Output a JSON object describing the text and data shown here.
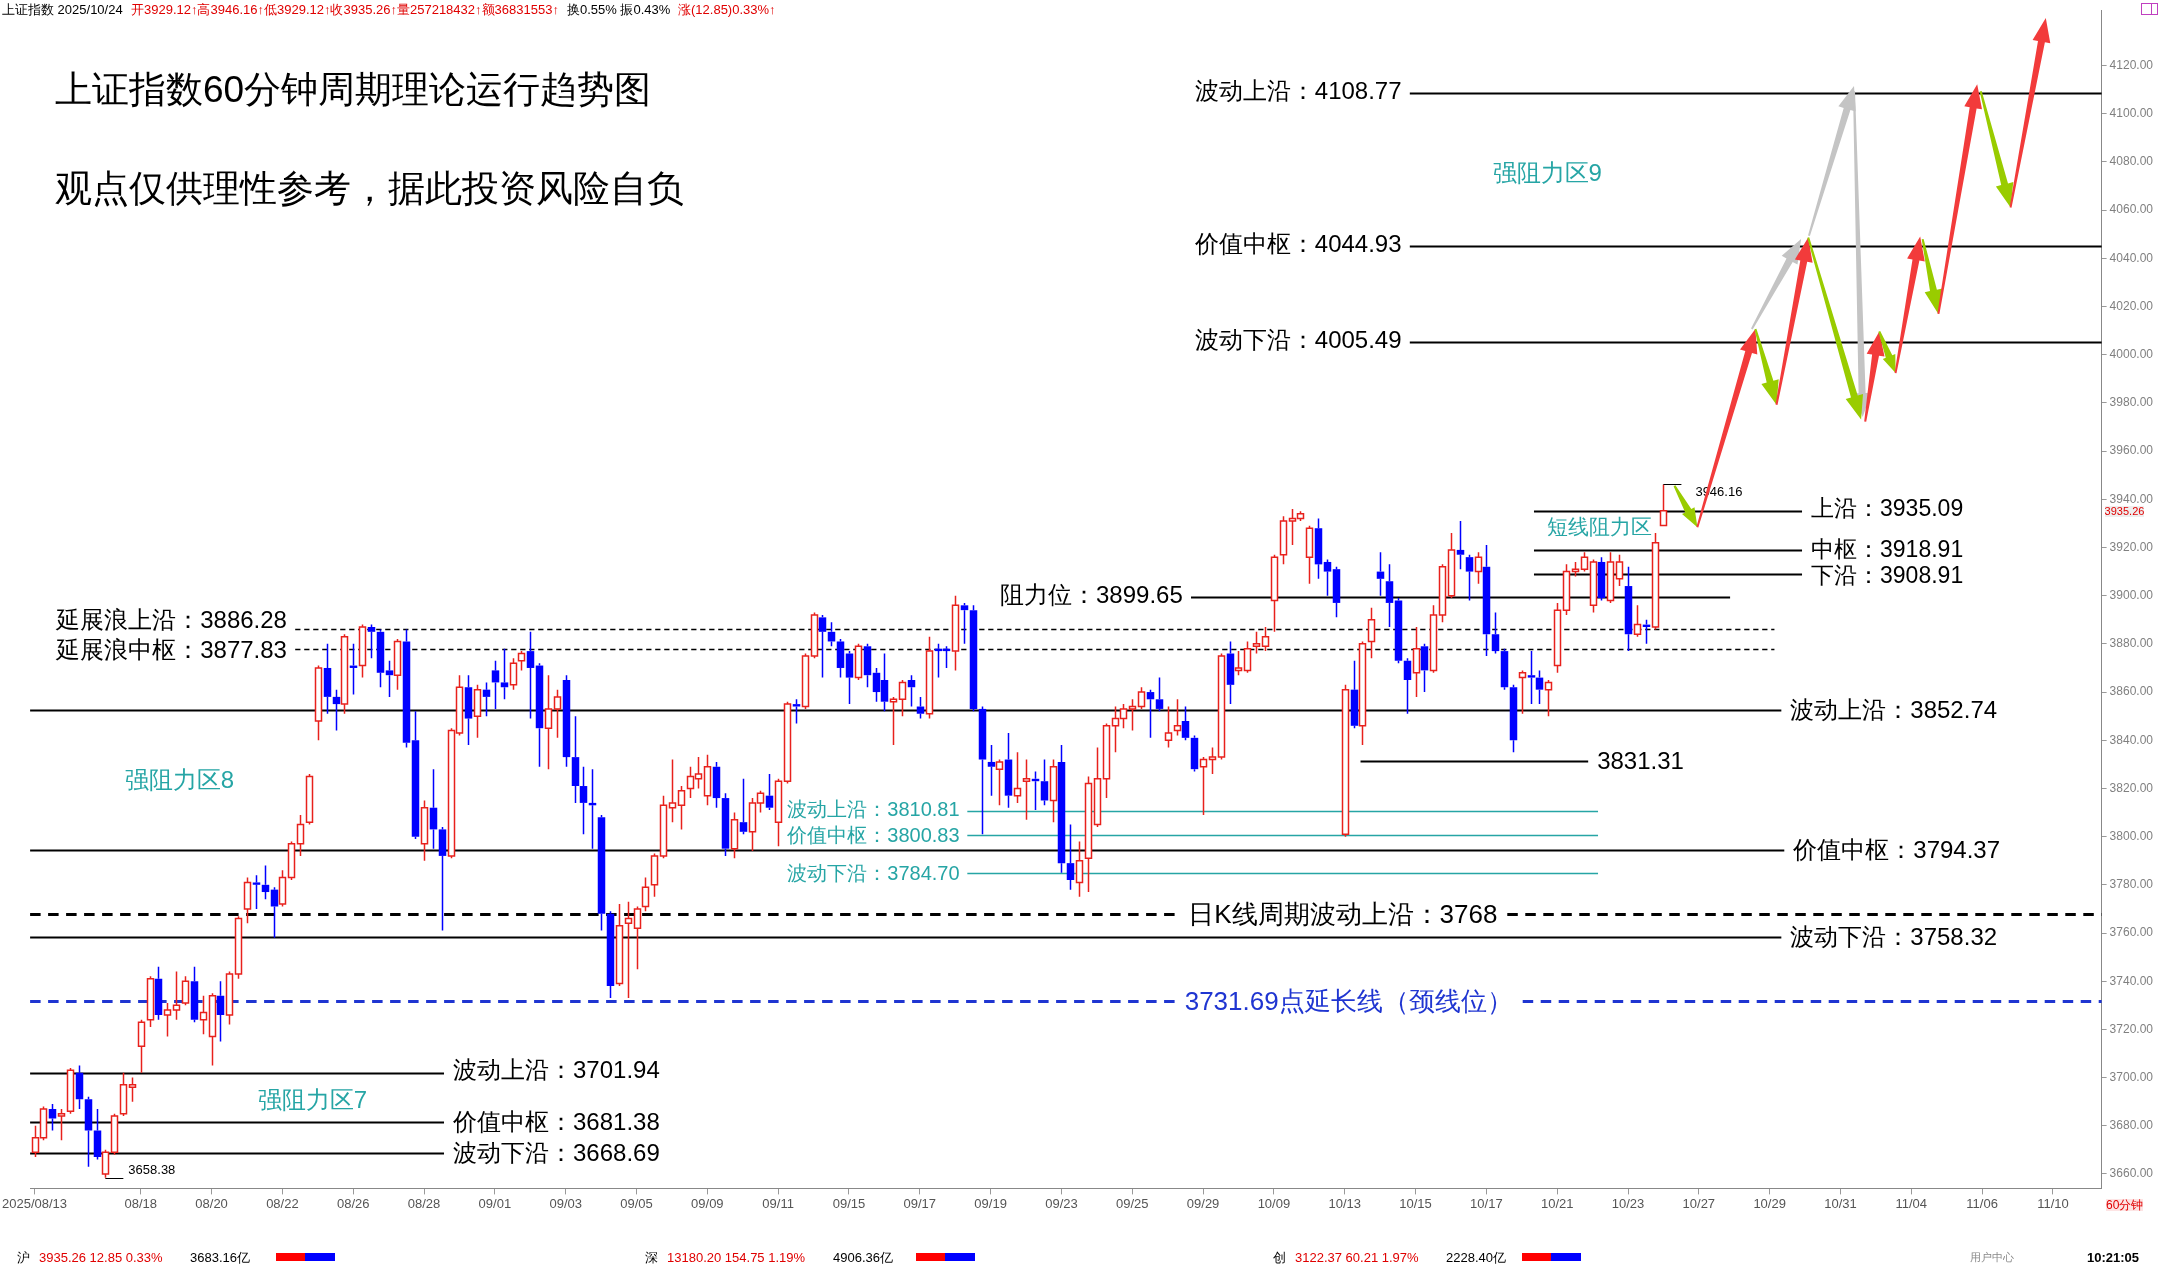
{
  "chart_data": {
    "type": "candlestick",
    "title": "上证指数60分钟周期理论运行趋势图",
    "subtitle": "观点仅供理性参考，据此投资风险自负",
    "categories": [
      "2025/08/13",
      null,
      null,
      null,
      null,
      null,
      null,
      null,
      null,
      null,
      null,
      null,
      "08/18",
      null,
      null,
      null,
      null,
      null,
      null,
      null,
      "08/20",
      null,
      null,
      null,
      null,
      null,
      null,
      null,
      "08/22",
      null,
      null,
      null,
      null,
      null,
      null,
      null,
      "08/26",
      null,
      null,
      null,
      null,
      null,
      null,
      null,
      "08/28",
      null,
      null,
      null,
      null,
      null,
      null,
      null,
      "09/01",
      null,
      null,
      null,
      null,
      null,
      null,
      null,
      "09/03",
      null,
      null,
      null,
      null,
      null,
      null,
      null,
      "09/05",
      null,
      null,
      null,
      null,
      null,
      null,
      null,
      "09/09",
      null,
      null,
      null,
      null,
      null,
      null,
      null,
      "09/11",
      null,
      null,
      null,
      null,
      null,
      null,
      null,
      "09/15",
      null,
      null,
      null,
      null,
      null,
      null,
      null,
      "09/17",
      null,
      null,
      null,
      null,
      null,
      null,
      null,
      "09/19",
      null,
      null,
      null,
      null,
      null,
      null,
      null,
      "09/23",
      null,
      null,
      null,
      null,
      null,
      null,
      null,
      "09/25",
      null,
      null,
      null,
      null,
      null,
      null,
      null,
      "09/29",
      null,
      null,
      null,
      null,
      null,
      null,
      null,
      "10/09",
      null,
      null,
      null,
      null,
      null,
      null,
      null,
      "10/13",
      null,
      null,
      null,
      null,
      null,
      null,
      null,
      "10/15",
      null,
      null,
      null,
      null,
      null,
      null,
      null,
      "10/17",
      null,
      null,
      null,
      null,
      null,
      null,
      null,
      "10/21",
      null,
      null,
      null,
      null,
      null,
      null,
      null,
      "10/23",
      null,
      null,
      null,
      null,
      null,
      null,
      null,
      "10/27",
      null,
      null,
      null,
      null,
      null,
      null,
      null,
      "10/29",
      null,
      null,
      null,
      null,
      null,
      null,
      null,
      "10/31",
      null,
      null,
      null,
      null,
      null,
      null,
      null,
      "11/04",
      null,
      null,
      null,
      null,
      null,
      null,
      null,
      "11/06",
      null,
      null,
      null,
      null,
      null,
      null,
      null,
      "11/10",
      null,
      null,
      null,
      null,
      null
    ],
    "ohlc": [
      [
        3669,
        3680,
        3667,
        3675
      ],
      [
        3675,
        3688,
        3674,
        3687
      ],
      [
        3687,
        3689,
        3678,
        3683
      ],
      [
        3684,
        3687,
        3674,
        3685
      ],
      [
        3686,
        3704,
        3685,
        3703
      ],
      [
        3702,
        3705,
        3687,
        3691
      ],
      [
        3691,
        3692,
        3663,
        3678
      ],
      [
        3678,
        3687,
        3666,
        3667
      ],
      [
        3660,
        3670,
        3658.38,
        3669
      ],
      [
        3669,
        3685,
        3668,
        3684
      ],
      [
        3685,
        3702,
        3684,
        3697
      ],
      [
        3696,
        3700,
        3690,
        3697
      ],
      [
        3713,
        3724,
        3702,
        3723
      ],
      [
        3724,
        3742,
        3721,
        3741
      ],
      [
        3741,
        3746,
        3724,
        3726
      ],
      [
        3726,
        3731,
        3717,
        3728
      ],
      [
        3728,
        3744,
        3724,
        3730
      ],
      [
        3731,
        3742,
        3730,
        3740
      ],
      [
        3740,
        3746,
        3723,
        3724
      ],
      [
        3724,
        3734,
        3718,
        3727
      ],
      [
        3717,
        3735,
        3705,
        3734
      ],
      [
        3734,
        3740,
        3715,
        3726
      ],
      [
        3726,
        3744,
        3722,
        3743
      ],
      [
        3743,
        3767,
        3741,
        3766
      ],
      [
        3770,
        3783,
        3764,
        3781
      ],
      [
        3781,
        3784,
        3770,
        3780
      ],
      [
        3780,
        3788,
        3774,
        3777
      ],
      [
        3778,
        3779,
        3758,
        3771
      ],
      [
        3772,
        3786,
        3771,
        3783
      ],
      [
        3783,
        3798,
        3782,
        3797
      ],
      [
        3797,
        3809,
        3792,
        3805
      ],
      [
        3806,
        3826,
        3805,
        3825
      ],
      [
        3848,
        3871,
        3840,
        3870
      ],
      [
        3870,
        3880,
        3851,
        3858
      ],
      [
        3858,
        3861,
        3844,
        3855
      ],
      [
        3855,
        3884,
        3851,
        3883
      ],
      [
        3871,
        3880,
        3859,
        3870
      ],
      [
        3871,
        3888,
        3866,
        3887
      ],
      [
        3887,
        3888,
        3874,
        3885
      ],
      [
        3885,
        3886,
        3862,
        3868
      ],
      [
        3869,
        3873,
        3858,
        3867
      ],
      [
        3867,
        3882,
        3861,
        3881
      ],
      [
        3881,
        3886,
        3837,
        3839
      ],
      [
        3840,
        3852,
        3799,
        3800
      ],
      [
        3797,
        3815,
        3790,
        3812
      ],
      [
        3812,
        3828,
        3795,
        3803
      ],
      [
        3803,
        3804,
        3761,
        3792
      ],
      [
        3792,
        3845,
        3791,
        3844
      ],
      [
        3843,
        3867,
        3842,
        3862
      ],
      [
        3862,
        3867,
        3838,
        3849
      ],
      [
        3850,
        3863,
        3841,
        3861
      ],
      [
        3861,
        3864,
        3850,
        3858
      ],
      [
        3869,
        3873,
        3853,
        3864
      ],
      [
        3864,
        3878,
        3857,
        3862
      ],
      [
        3863,
        3874,
        3861,
        3872
      ],
      [
        3873,
        3877,
        3869,
        3876
      ],
      [
        3877,
        3885,
        3849,
        3870
      ],
      [
        3871,
        3872,
        3829,
        3845
      ],
      [
        3845,
        3867,
        3828,
        3853
      ],
      [
        3853,
        3861,
        3841,
        3858
      ],
      [
        3865,
        3867,
        3829,
        3833
      ],
      [
        3833,
        3850,
        3814,
        3821
      ],
      [
        3821,
        3829,
        3801,
        3814
      ],
      [
        3814,
        3828,
        3795,
        3813
      ],
      [
        3808,
        3809,
        3761,
        3768
      ],
      [
        3768,
        3769,
        3733,
        3738
      ],
      [
        3739,
        3772,
        3738,
        3763
      ],
      [
        3764,
        3773,
        3733,
        3766
      ],
      [
        3762,
        3771,
        3745,
        3770
      ],
      [
        3771,
        3783,
        3769,
        3779
      ],
      [
        3780,
        3793,
        3775,
        3792
      ],
      [
        3792,
        3817,
        3791,
        3813
      ],
      [
        3812,
        3832,
        3806,
        3814
      ],
      [
        3813,
        3821,
        3803,
        3819
      ],
      [
        3820,
        3829,
        3816,
        3825
      ],
      [
        3824,
        3833,
        3820,
        3826
      ],
      [
        3817,
        3834,
        3813,
        3829
      ],
      [
        3829,
        3831,
        3812,
        3816
      ],
      [
        3816,
        3818,
        3792,
        3795
      ],
      [
        3795,
        3810,
        3791,
        3807
      ],
      [
        3806,
        3824,
        3801,
        3802
      ],
      [
        3802,
        3816,
        3794,
        3814
      ],
      [
        3814,
        3819,
        3810,
        3818
      ],
      [
        3817,
        3826,
        3811,
        3812
      ],
      [
        3806,
        3824,
        3796,
        3823
      ],
      [
        3823,
        3856,
        3822,
        3855
      ],
      [
        3855,
        3857,
        3847,
        3854
      ],
      [
        3854,
        3876,
        3853,
        3875
      ],
      [
        3875,
        3893,
        3874,
        3892
      ],
      [
        3891,
        3892,
        3866,
        3885
      ],
      [
        3885,
        3889,
        3879,
        3881
      ],
      [
        3881,
        3882,
        3866,
        3870
      ],
      [
        3876,
        3877,
        3855,
        3866
      ],
      [
        3866,
        3880,
        3865,
        3879
      ],
      [
        3879,
        3880,
        3862,
        3867
      ],
      [
        3868,
        3870,
        3856,
        3860
      ],
      [
        3865,
        3876,
        3852,
        3856
      ],
      [
        3856,
        3858,
        3838,
        3857
      ],
      [
        3857,
        3865,
        3850,
        3864
      ],
      [
        3865,
        3867,
        3854,
        3862
      ],
      [
        3854,
        3858,
        3849,
        3851
      ],
      [
        3851,
        3883,
        3849,
        3877
      ],
      [
        3878,
        3880,
        3866,
        3877
      ],
      [
        3878,
        3879,
        3870,
        3877
      ],
      [
        3877,
        3900,
        3869,
        3896
      ],
      [
        3896,
        3897,
        3880,
        3894
      ],
      [
        3894,
        3896,
        3852,
        3853
      ],
      [
        3853,
        3854,
        3801,
        3832
      ],
      [
        3831,
        3838,
        3817,
        3829
      ],
      [
        3828,
        3832,
        3813,
        3831
      ],
      [
        3832,
        3843,
        3812,
        3817
      ],
      [
        3817,
        3835,
        3814,
        3820
      ],
      [
        3823,
        3832,
        3807,
        3824
      ],
      [
        3824,
        3827,
        3811,
        3823
      ],
      [
        3823,
        3832,
        3813,
        3815
      ],
      [
        3815,
        3832,
        3806,
        3829
      ],
      [
        3831,
        3838,
        3785,
        3789
      ],
      [
        3789,
        3805,
        3778,
        3782
      ],
      [
        3781,
        3798,
        3775,
        3790
      ],
      [
        3791,
        3825,
        3777,
        3822
      ],
      [
        3805,
        3837,
        3804,
        3824
      ],
      [
        3824,
        3847,
        3816,
        3846
      ],
      [
        3846,
        3854,
        3835,
        3849
      ],
      [
        3849,
        3855,
        3845,
        3853
      ],
      [
        3853,
        3857,
        3844,
        3854
      ],
      [
        3854,
        3862,
        3853,
        3860
      ],
      [
        3860,
        3861,
        3841,
        3857
      ],
      [
        3857,
        3866,
        3852,
        3853
      ],
      [
        3840,
        3854,
        3837,
        3843
      ],
      [
        3844,
        3857,
        3842,
        3846
      ],
      [
        3848,
        3854,
        3840,
        3841
      ],
      [
        3841,
        3842,
        3827,
        3828
      ],
      [
        3829,
        3833,
        3809,
        3832
      ],
      [
        3832,
        3837,
        3826,
        3833
      ],
      [
        3833,
        3876,
        3832,
        3875
      ],
      [
        3876,
        3881,
        3855,
        3863
      ],
      [
        3869,
        3877,
        3867,
        3870
      ],
      [
        3869,
        3881,
        3868,
        3878
      ],
      [
        3879,
        3885,
        3876,
        3880
      ],
      [
        3879,
        3887,
        3877,
        3883
      ],
      [
        3898,
        3917,
        3885,
        3916
      ],
      [
        3917,
        3933,
        3913,
        3931
      ],
      [
        3931,
        3936,
        3921,
        3932
      ],
      [
        3932,
        3935,
        3931,
        3934
      ],
      [
        3916,
        3929,
        3905,
        3928
      ],
      [
        3928,
        3932,
        3907,
        3913
      ],
      [
        3914,
        3915,
        3900,
        3910
      ],
      [
        3911,
        3912,
        3891,
        3897
      ],
      [
        3801,
        3863,
        3800,
        3861
      ],
      [
        3861,
        3873,
        3845,
        3846
      ],
      [
        3846,
        3881,
        3838,
        3880
      ],
      [
        3881,
        3895,
        3874,
        3890
      ],
      [
        3910,
        3918,
        3900,
        3907
      ],
      [
        3906,
        3913,
        3887,
        3897
      ],
      [
        3898,
        3899,
        3872,
        3873
      ],
      [
        3873,
        3874,
        3851,
        3865
      ],
      [
        3868,
        3887,
        3858,
        3878
      ],
      [
        3879,
        3880,
        3860,
        3869
      ],
      [
        3869,
        3896,
        3868,
        3892
      ],
      [
        3892,
        3913,
        3889,
        3912
      ],
      [
        3900,
        3926,
        3899,
        3919
      ],
      [
        3919,
        3931,
        3911,
        3917
      ],
      [
        3916,
        3917,
        3898,
        3910
      ],
      [
        3910,
        3918,
        3905,
        3916
      ],
      [
        3912,
        3921,
        3875,
        3884
      ],
      [
        3884,
        3893,
        3876,
        3877
      ],
      [
        3877,
        3878,
        3861,
        3862
      ],
      [
        3862,
        3863,
        3835,
        3840
      ],
      [
        3866,
        3869,
        3851,
        3868
      ],
      [
        3867,
        3877,
        3855,
        3866
      ],
      [
        3866,
        3869,
        3855,
        3861
      ],
      [
        3861,
        3865,
        3850,
        3864
      ],
      [
        3871,
        3897,
        3868,
        3894
      ],
      [
        3894,
        3913,
        3892,
        3910
      ],
      [
        3910,
        3914,
        3908,
        3911
      ],
      [
        3911,
        3918,
        3910,
        3916
      ],
      [
        3896,
        3915,
        3893,
        3914
      ],
      [
        3914,
        3916,
        3898,
        3899
      ],
      [
        3898,
        3918,
        3897,
        3914
      ],
      [
        3907,
        3917,
        3904,
        3914
      ],
      [
        3904,
        3912,
        3877,
        3884
      ],
      [
        3884,
        3896,
        3883,
        3888
      ],
      [
        3888,
        3890,
        3880,
        3887
      ],
      [
        3887,
        3926,
        3886,
        3922
      ],
      [
        3929.12,
        3946.16,
        3929.12,
        3935.26
      ],
      null,
      null,
      null,
      null,
      null,
      null,
      null,
      null,
      null,
      null,
      null,
      null,
      null,
      null,
      null,
      null,
      null,
      null,
      null,
      null,
      null,
      null,
      null,
      null,
      null,
      null,
      null,
      null,
      null,
      null,
      null,
      null,
      null,
      null,
      null,
      null,
      null,
      null,
      null,
      null,
      null,
      null,
      null,
      null,
      null,
      null,
      null,
      null,
      null
    ],
    "ylim": [
      3654,
      4143
    ],
    "yticks": [
      {
        "value": 3660,
        "label": "3660.00"
      },
      {
        "value": 3680,
        "label": "3680.00"
      },
      {
        "value": 3700,
        "label": "3700.00"
      },
      {
        "value": 3720,
        "label": "3720.00"
      },
      {
        "value": 3740,
        "label": "3740.00"
      },
      {
        "value": 3760,
        "label": "3760.00"
      },
      {
        "value": 3780,
        "label": "3780.00"
      },
      {
        "value": 3800,
        "label": "3800.00"
      },
      {
        "value": 3820,
        "label": "3820.00"
      },
      {
        "value": 3840,
        "label": "3840.00"
      },
      {
        "value": 3860,
        "label": "3860.00"
      },
      {
        "value": 3880,
        "label": "3880.00"
      },
      {
        "value": 3900,
        "label": "3900.00"
      },
      {
        "value": 3920,
        "label": "3920.00"
      },
      {
        "value": 3940,
        "label": "3940.00"
      },
      {
        "value": 3960,
        "label": "3960.00"
      },
      {
        "value": 3980,
        "label": "3980.00"
      },
      {
        "value": 4000,
        "label": "4000.00"
      },
      {
        "value": 4020,
        "label": "4020.00"
      },
      {
        "value": 4040,
        "label": "4040.00"
      },
      {
        "value": 4060,
        "label": "4060.00"
      },
      {
        "value": 4080,
        "label": "4080.00"
      },
      {
        "value": 4100,
        "label": "4100.00"
      },
      {
        "value": 4120,
        "label": "4120.00"
      }
    ],
    "ref_lines": [
      {
        "axis": "y",
        "value": 4108.77,
        "label": "波动上沿：4108.77",
        "color": "#000000",
        "line_style": "solid"
      },
      {
        "axis": "y",
        "value": 4044.93,
        "label": "价值中枢：4044.93",
        "color": "#000000",
        "line_style": "solid"
      },
      {
        "axis": "y",
        "value": 4005.49,
        "label": "波动下沿：4005.49",
        "color": "#000000",
        "line_style": "solid"
      },
      {
        "axis": "y",
        "value": 3935.09,
        "label": "上沿：3935.09",
        "color": "#000000",
        "line_style": "solid"
      },
      {
        "axis": "y",
        "value": 3918.91,
        "label": "中枢：3918.91",
        "color": "#000000",
        "line_style": "solid"
      },
      {
        "axis": "y",
        "value": 3908.91,
        "label": "下沿：3908.91",
        "color": "#000000",
        "line_style": "solid"
      },
      {
        "axis": "y",
        "value": 3899.65,
        "label": "阻力位：3899.65",
        "color": "#000000",
        "line_style": "solid"
      },
      {
        "axis": "y",
        "value": 3886.28,
        "label": "延展浪上沿：3886.28",
        "color": "#000000",
        "line_style": "dashed"
      },
      {
        "axis": "y",
        "value": 3877.83,
        "label": "延展浪中枢：3877.83",
        "color": "#000000",
        "line_style": "dashed"
      },
      {
        "axis": "y",
        "value": 3852.74,
        "label": "波动上沿：3852.74",
        "color": "#000000",
        "line_style": "solid"
      },
      {
        "axis": "y",
        "value": 3831.31,
        "label": "3831.31",
        "color": "#000000",
        "line_style": "solid"
      },
      {
        "axis": "y",
        "value": 3810.81,
        "label": "波动上沿：3810.81",
        "color": "#26a5a5",
        "line_style": "solid"
      },
      {
        "axis": "y",
        "value": 3800.83,
        "label": "价值中枢：3800.83",
        "color": "#26a5a5",
        "line_style": "solid"
      },
      {
        "axis": "y",
        "value": 3794.37,
        "label": "价值中枢：3794.37",
        "color": "#000000",
        "line_style": "solid"
      },
      {
        "axis": "y",
        "value": 3784.7,
        "label": "波动下沿：3784.70",
        "color": "#26a5a5",
        "line_style": "solid"
      },
      {
        "axis": "y",
        "value": 3768,
        "label": "日K线周期波动上沿：3768",
        "color": "#000000",
        "line_style": "dashed"
      },
      {
        "axis": "y",
        "value": 3758.32,
        "label": "波动下沿：3758.32",
        "color": "#000000",
        "line_style": "solid"
      },
      {
        "axis": "y",
        "value": 3731.69,
        "label": "3731.69点延长线（颈线位）",
        "color": "#1f35d1",
        "line_style": "dashed"
      },
      {
        "axis": "y",
        "value": 3701.94,
        "label": "波动上沿：3701.94",
        "color": "#000000",
        "line_style": "solid"
      },
      {
        "axis": "y",
        "value": 3681.38,
        "label": "价值中枢：3681.38",
        "color": "#000000",
        "line_style": "solid"
      },
      {
        "axis": "y",
        "value": 3668.69,
        "label": "波动下沿：3668.69",
        "color": "#000000",
        "line_style": "solid"
      }
    ],
    "annotations": [
      "强阻力区9",
      "强阻力区8",
      "强阻力区7",
      "短线阻力区",
      "3658.38",
      "3946.16",
      "3935.26",
      "上证指数 2025/10/24",
      "开3929.12↑高3946.16↑低3929.12↑收3935.26↑量257218432↑额36831553↑",
      "换0.55% 振0.43%",
      "涨(12.85)0.33%↑",
      "60分钟",
      "沪",
      "3935.26 12.85 0.33%",
      "3683.16亿",
      "深",
      "13180.20 154.75 1.19%",
      "4906.36亿",
      "创",
      "3122.37 60.21 1.97%",
      "2228.40亿",
      "用户中心",
      "10:21:05"
    ]
  }
}
